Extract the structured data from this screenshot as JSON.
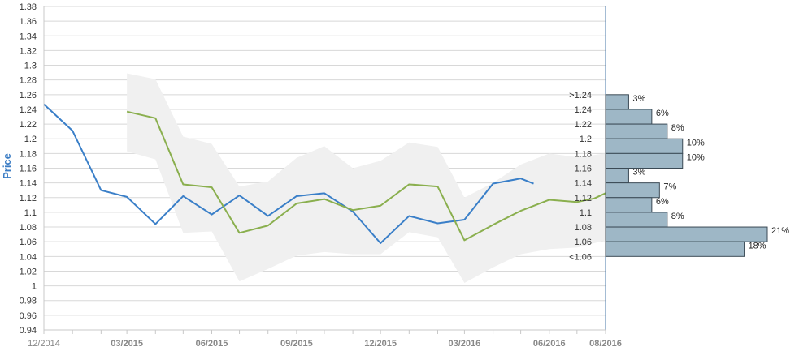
{
  "chart_data": {
    "type": "line",
    "ylabel": "Price",
    "ylim": [
      0.94,
      1.38
    ],
    "yticks": [
      "0.94",
      "0.96",
      "0.98",
      "1",
      "1.02",
      "1.04",
      "1.06",
      "1.08",
      "1.1",
      "1.12",
      "1.14",
      "1.16",
      "1.18",
      "1.2",
      "1.22",
      "1.24",
      "1.26",
      "1.28",
      "1.3",
      "1.32",
      "1.34",
      "1.36",
      "1.38"
    ],
    "xlim": [
      "2014-12-01",
      "2016-08-01"
    ],
    "xticks": [
      {
        "label": "12/2014",
        "date": "2014-12-01"
      },
      {
        "label": "03/2015",
        "date": "2015-03-01"
      },
      {
        "label": "06/2015",
        "date": "2015-06-01"
      },
      {
        "label": "09/2015",
        "date": "2015-09-01"
      },
      {
        "label": "12/2015",
        "date": "2015-12-01"
      },
      {
        "label": "03/2016",
        "date": "2016-03-01"
      },
      {
        "label": "06/2016",
        "date": "2016-06-01"
      },
      {
        "label": "08/2016",
        "date": "2016-08-01"
      }
    ],
    "series": [
      {
        "color": "#3a7fc8",
        "points": [
          [
            "2014-12-01",
            1.247
          ],
          [
            "2015-01-01",
            1.211
          ],
          [
            "2015-02-01",
            1.13
          ],
          [
            "2015-03-01",
            1.121
          ],
          [
            "2015-04-01",
            1.084
          ],
          [
            "2015-05-01",
            1.122
          ],
          [
            "2015-06-01",
            1.097
          ],
          [
            "2015-07-01",
            1.123
          ],
          [
            "2015-08-01",
            1.095
          ],
          [
            "2015-09-01",
            1.122
          ],
          [
            "2015-10-01",
            1.126
          ],
          [
            "2015-11-01",
            1.101
          ],
          [
            "2015-12-01",
            1.058
          ],
          [
            "2016-01-01",
            1.095
          ],
          [
            "2016-02-01",
            1.085
          ],
          [
            "2016-03-01",
            1.09
          ],
          [
            "2016-04-01",
            1.139
          ],
          [
            "2016-05-01",
            1.146
          ],
          [
            "2016-05-15",
            1.139
          ]
        ]
      },
      {
        "color": "#8aaf4e",
        "points": [
          [
            "2015-03-01",
            1.237
          ],
          [
            "2015-04-01",
            1.228
          ],
          [
            "2015-05-01",
            1.138
          ],
          [
            "2015-06-01",
            1.134
          ],
          [
            "2015-07-01",
            1.072
          ],
          [
            "2015-08-01",
            1.082
          ],
          [
            "2015-09-01",
            1.112
          ],
          [
            "2015-10-01",
            1.118
          ],
          [
            "2015-11-01",
            1.103
          ],
          [
            "2015-12-01",
            1.109
          ],
          [
            "2016-01-01",
            1.138
          ],
          [
            "2016-02-01",
            1.135
          ],
          [
            "2016-03-01",
            1.062
          ],
          [
            "2016-04-01",
            1.083
          ],
          [
            "2016-05-01",
            1.102
          ],
          [
            "2016-06-01",
            1.117
          ],
          [
            "2016-07-01",
            1.114
          ],
          [
            "2016-07-20",
            1.119
          ],
          [
            "2016-08-01",
            1.126
          ]
        ]
      }
    ],
    "band": {
      "color": "#f0f0f0",
      "upper": [
        [
          "2015-03-01",
          1.289
        ],
        [
          "2015-04-01",
          1.281
        ],
        [
          "2015-05-01",
          1.203
        ],
        [
          "2015-06-01",
          1.193
        ],
        [
          "2015-07-01",
          1.135
        ],
        [
          "2015-08-01",
          1.142
        ],
        [
          "2015-09-01",
          1.174
        ],
        [
          "2015-10-01",
          1.19
        ],
        [
          "2015-11-01",
          1.16
        ],
        [
          "2015-12-01",
          1.17
        ],
        [
          "2016-01-01",
          1.195
        ],
        [
          "2016-02-01",
          1.189
        ],
        [
          "2016-03-01",
          1.12
        ],
        [
          "2016-04-01",
          1.14
        ],
        [
          "2016-05-01",
          1.165
        ],
        [
          "2016-06-01",
          1.18
        ],
        [
          "2016-07-01",
          1.175
        ],
        [
          "2016-08-01",
          1.18
        ]
      ],
      "lower": [
        [
          "2015-03-01",
          1.183
        ],
        [
          "2015-04-01",
          1.172
        ],
        [
          "2015-05-01",
          1.072
        ],
        [
          "2015-06-01",
          1.074
        ],
        [
          "2015-07-01",
          1.006
        ],
        [
          "2015-08-01",
          1.023
        ],
        [
          "2015-09-01",
          1.041
        ],
        [
          "2015-10-01",
          1.046
        ],
        [
          "2015-11-01",
          1.043
        ],
        [
          "2015-12-01",
          1.043
        ],
        [
          "2016-01-01",
          1.073
        ],
        [
          "2016-02-01",
          1.066
        ],
        [
          "2016-03-01",
          1.004
        ],
        [
          "2016-04-01",
          1.025
        ],
        [
          "2016-05-01",
          1.043
        ],
        [
          "2016-06-01",
          1.05
        ],
        [
          "2016-07-01",
          1.052
        ],
        [
          "2016-08-01",
          1.062
        ]
      ]
    },
    "distribution": {
      "color": "#9eb7c6",
      "bins": [
        {
          "label": ">1.24",
          "y": 1.25,
          "percent": 3,
          "pct_label": "3%"
        },
        {
          "label": "1.24",
          "y": 1.23,
          "percent": 6,
          "pct_label": "6%"
        },
        {
          "label": "1.22",
          "y": 1.21,
          "percent": 8,
          "pct_label": "8%"
        },
        {
          "label": "1.2",
          "y": 1.19,
          "percent": 10,
          "pct_label": "10%"
        },
        {
          "label": "1.18",
          "y": 1.17,
          "percent": 10,
          "pct_label": "10%"
        },
        {
          "label": "1.16",
          "y": 1.15,
          "percent": 3,
          "pct_label": "3%"
        },
        {
          "label": "1.14",
          "y": 1.13,
          "percent": 7,
          "pct_label": "7%"
        },
        {
          "label": "1.12",
          "y": 1.11,
          "percent": 6,
          "pct_label": "6%"
        },
        {
          "label": "1.1",
          "y": 1.09,
          "percent": 8,
          "pct_label": "8%"
        },
        {
          "label": "1.08",
          "y": 1.07,
          "percent": 21,
          "pct_label": "21%"
        },
        {
          "label": "1.06",
          "y": 1.05,
          "percent": 18,
          "pct_label": "18%"
        },
        {
          "label": "<1.06",
          "y": 1.03,
          "percent": 0,
          "pct_label": ""
        }
      ]
    },
    "grid": true
  }
}
